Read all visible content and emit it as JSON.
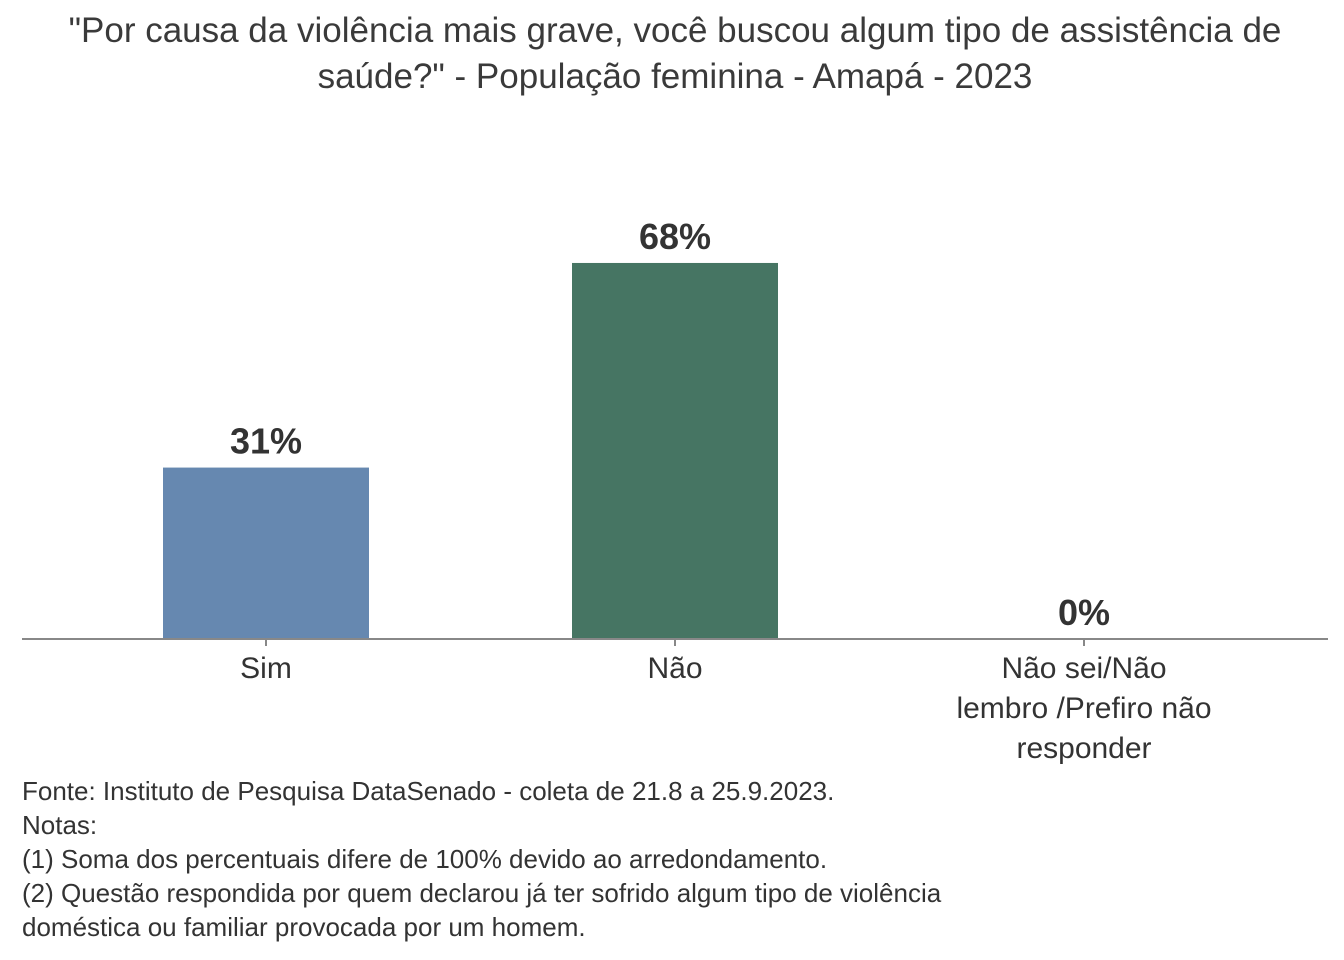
{
  "chart_data": {
    "type": "bar",
    "title": "\"Por causa da violência mais grave, você buscou algum tipo de assistência de saúde?\" - População feminina - Amapá - 2023",
    "categories": [
      [
        "Sim"
      ],
      [
        "Não"
      ],
      [
        "Não sei/Não",
        "lembro /Prefiro não",
        "responder"
      ]
    ],
    "values": [
      31,
      68,
      0
    ],
    "value_labels": [
      "31%",
      "68%",
      "0%"
    ],
    "colors": [
      "#6688b0",
      "#467563",
      "#b0b0b0"
    ],
    "ylim": [
      0,
      100
    ],
    "xlabel": "",
    "ylabel": ""
  },
  "notes": [
    "Fonte: Instituto de Pesquisa DataSenado - coleta de 21.8 a 25.9.2023.",
    "Notas:",
    "(1) Soma dos percentuais difere de 100% devido ao arredondamento.",
    "(2) Questão respondida por quem declarou já ter sofrido algum tipo de violência",
    "doméstica ou familiar provocada por um homem."
  ]
}
